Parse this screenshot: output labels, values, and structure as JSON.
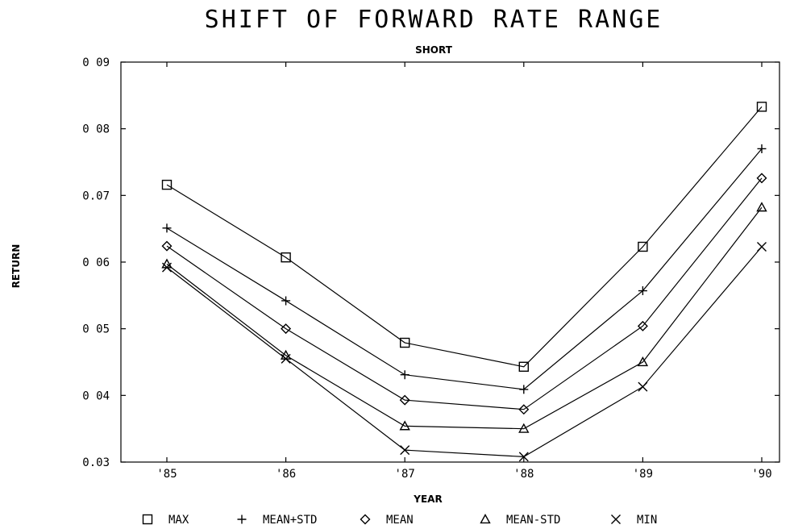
{
  "chart_data": {
    "type": "line",
    "title": "SHIFT OF FORWARD RATE RANGE",
    "subtitle": "SHORT",
    "xlabel": "YEAR",
    "ylabel": "RETURN",
    "x": [
      "'85",
      "'86",
      "'87",
      "'88",
      "'89",
      "'90"
    ],
    "ylim": [
      0.03,
      0.09
    ],
    "yticks": [
      {
        "value": 0.03,
        "label": "0.03"
      },
      {
        "value": 0.04,
        "label": "0 04"
      },
      {
        "value": 0.05,
        "label": "0 05"
      },
      {
        "value": 0.06,
        "label": "0 06"
      },
      {
        "value": 0.07,
        "label": "0.07"
      },
      {
        "value": 0.08,
        "label": "0 08"
      },
      {
        "value": 0.09,
        "label": "0 09"
      }
    ],
    "grid": false,
    "legend_position": "bottom",
    "series": [
      {
        "name": "MAX",
        "marker": "square",
        "values": [
          0.0716,
          0.0607,
          0.0479,
          0.0443,
          0.0623,
          0.0833
        ]
      },
      {
        "name": "MEAN+STD",
        "marker": "plus",
        "values": [
          0.0651,
          0.0542,
          0.0431,
          0.0409,
          0.0557,
          0.077
        ]
      },
      {
        "name": "MEAN",
        "marker": "diamond",
        "values": [
          0.0624,
          0.05,
          0.0393,
          0.0379,
          0.0504,
          0.0726
        ]
      },
      {
        "name": "MEAN-STD",
        "marker": "triangle",
        "values": [
          0.0597,
          0.046,
          0.0354,
          0.035,
          0.045,
          0.0682
        ]
      },
      {
        "name": "MIN",
        "marker": "x",
        "values": [
          0.0592,
          0.0455,
          0.0318,
          0.0308,
          0.0413,
          0.0623
        ]
      }
    ]
  }
}
